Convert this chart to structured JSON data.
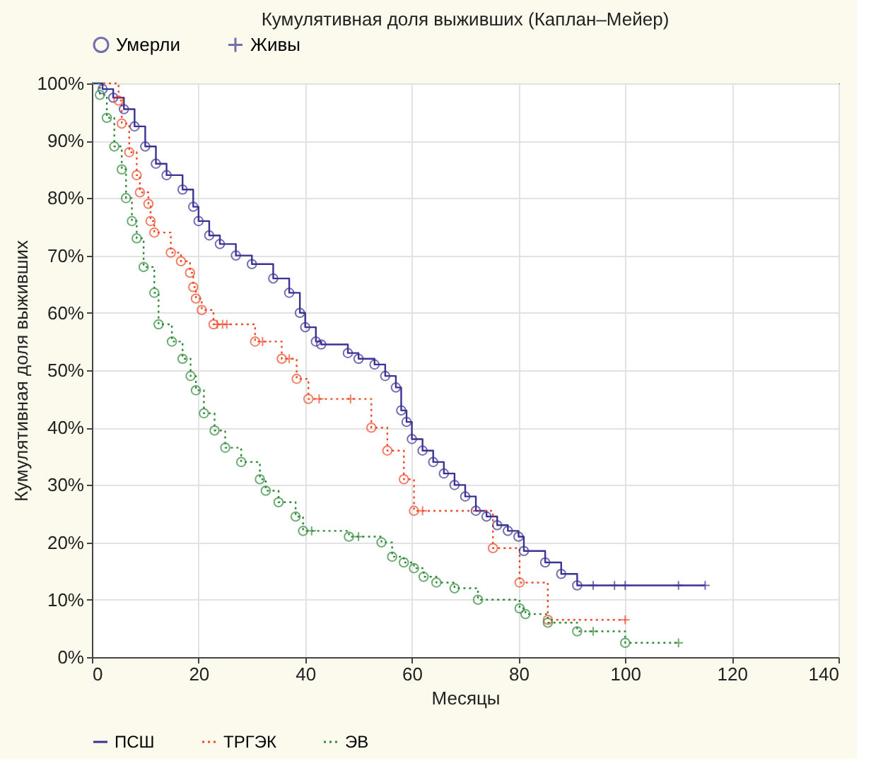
{
  "chart_data": {
    "type": "step",
    "title": "Кумулятивная доля выживших (Каплан–Мейер)",
    "xlabel": "Месяцы",
    "ylabel": "Кумулятивная доля выживших",
    "xlim": [
      0,
      140
    ],
    "xticks": [
      0,
      20,
      40,
      60,
      80,
      100,
      120,
      140
    ],
    "ylim": [
      0,
      100
    ],
    "yticks": [
      {
        "value": 0,
        "label": "0%"
      },
      {
        "value": 10,
        "label": "10%"
      },
      {
        "value": 20,
        "label": "20%"
      },
      {
        "value": 30,
        "label": "30%"
      },
      {
        "value": 40,
        "label": "40%"
      },
      {
        "value": 50,
        "label": "50%"
      },
      {
        "value": 60,
        "label": "60%"
      },
      {
        "value": 70,
        "label": "70%"
      },
      {
        "value": 80,
        "label": "80%"
      },
      {
        "value": 90,
        "label": "90%"
      },
      {
        "value": 100,
        "label": "100%"
      }
    ],
    "grid": true,
    "legend": "bottom",
    "series": [
      {
        "name": "ПСШ",
        "color": "#3a3393",
        "line_style": "solid",
        "x": [
          0,
          2,
          4,
          6,
          8,
          10,
          12,
          14,
          17,
          19,
          20,
          22,
          24,
          27,
          30,
          34,
          37,
          39,
          40,
          42,
          43,
          48,
          50,
          53,
          55,
          57,
          58,
          59,
          60,
          62,
          64,
          66,
          68,
          70,
          72,
          74,
          76,
          78,
          80,
          81,
          85,
          88,
          91,
          115
        ],
        "values": [
          100,
          99,
          97.5,
          95.5,
          92.5,
          89,
          86,
          84,
          81.5,
          78.5,
          76,
          73.5,
          72,
          70,
          68.5,
          66,
          63.5,
          60,
          57.5,
          55,
          54.5,
          53,
          52,
          51,
          49,
          47,
          43,
          41,
          38,
          36,
          34,
          32,
          30,
          28,
          25.5,
          24.5,
          23,
          22,
          21,
          18.5,
          16.5,
          14.5,
          12.5,
          12.5
        ]
      },
      {
        "name": "ТРГЭК",
        "color": "#f04a2a",
        "line_style": "dotted",
        "x": [
          0,
          5,
          5.6,
          7,
          8.4,
          9,
          10.6,
          11,
          11.7,
          14.8,
          16.7,
          18.4,
          19,
          19.5,
          20.6,
          22.8,
          30.6,
          35.6,
          38.4,
          40.6,
          52.4,
          55.4,
          58.5,
          60.4,
          75.2,
          80.2,
          85.5,
          100
        ],
        "values": [
          100,
          97,
          93,
          88,
          84,
          81,
          79,
          76,
          74,
          70.5,
          69,
          67,
          64.5,
          62.5,
          60.5,
          58,
          55,
          52,
          48.5,
          45,
          40,
          36,
          31,
          25.5,
          19,
          13,
          6.5,
          6.5
        ]
      },
      {
        "name": "ЭВ",
        "color": "#2e8b3a",
        "line_style": "dotted",
        "x": [
          0,
          1.5,
          2.8,
          4.2,
          5.6,
          6.4,
          7.5,
          8.4,
          9.7,
          11.7,
          12.5,
          15,
          17,
          18.5,
          19.5,
          21,
          23,
          25,
          28,
          31.5,
          32.6,
          35,
          38.2,
          39.6,
          48.2,
          54.3,
          56.3,
          58.5,
          60.4,
          62.2,
          64.6,
          68,
          72.4,
          80.2,
          81.3,
          85.5,
          91,
          100,
          110
        ],
        "values": [
          100,
          98,
          94,
          89,
          85,
          80,
          76,
          73,
          68,
          63.5,
          58,
          55,
          52,
          49,
          46.5,
          42.5,
          39.5,
          36.5,
          34,
          31,
          29,
          27,
          24.5,
          22,
          21,
          20,
          17.5,
          16.5,
          15.5,
          14,
          13,
          12,
          10,
          8.5,
          7.5,
          6,
          4.5,
          2.5,
          2.5
        ]
      },
      {
        "name": "Умерли",
        "type": "scatter",
        "marker": "circle",
        "color": "#3a3393",
        "x": [
          2,
          4,
          6,
          8,
          10,
          12,
          14,
          17,
          19,
          20,
          22,
          24,
          27,
          30,
          34,
          37,
          39,
          40,
          42,
          43,
          48,
          50,
          53,
          55,
          57,
          58,
          59,
          60,
          62,
          64,
          66,
          68,
          70,
          72,
          74,
          76,
          78,
          80,
          81,
          85,
          88,
          91,
          5,
          5.6,
          7,
          8.4,
          9,
          10.6,
          11,
          11.7,
          14.8,
          16.7,
          18.4,
          19,
          19.5,
          20.6,
          22.8,
          30.6,
          35.6,
          38.4,
          40.6,
          52.4,
          55.4,
          58.5,
          60.4,
          75.2,
          80.2,
          85.5,
          1.5,
          2.8,
          4.2,
          5.6,
          6.4,
          7.5,
          8.4,
          9.7,
          11.7,
          12.5,
          15,
          17,
          18.5,
          19.5,
          21,
          23,
          25,
          28,
          31.5,
          32.6,
          35,
          38.2,
          39.6,
          48.2,
          54.3,
          56.3,
          58.5,
          60.4,
          62.2,
          64.6,
          68,
          72.4,
          80.2,
          81.3,
          85.5,
          91,
          100
        ],
        "values": [
          99,
          97.5,
          95.5,
          92.5,
          89,
          86,
          84,
          81.5,
          78.5,
          76,
          73.5,
          72,
          70,
          68.5,
          66,
          63.5,
          60,
          57.5,
          55,
          54.5,
          53,
          52,
          51,
          49,
          47,
          43,
          41,
          38,
          36,
          34,
          32,
          30,
          28,
          25.5,
          24.5,
          23,
          22,
          21,
          18.5,
          16.5,
          14.5,
          12.5,
          97,
          93,
          88,
          84,
          81,
          79,
          76,
          74,
          70.5,
          69,
          67,
          64.5,
          62.5,
          60.5,
          58,
          55,
          52,
          48.5,
          45,
          40,
          36,
          31,
          25.5,
          19,
          13,
          6.5,
          98,
          94,
          89,
          85,
          80,
          76,
          73,
          68,
          63.5,
          58,
          55,
          52,
          49,
          46.5,
          42.5,
          39.5,
          36.5,
          34,
          31,
          29,
          27,
          24.5,
          22,
          21,
          20,
          17.5,
          16.5,
          15.5,
          14,
          13,
          12,
          10,
          8.5,
          7.5,
          6,
          4.5,
          2.5
        ],
        "colors": [
          "#3a3393",
          "#3a3393",
          "#3a3393",
          "#3a3393",
          "#3a3393",
          "#3a3393",
          "#3a3393",
          "#3a3393",
          "#3a3393",
          "#3a3393",
          "#3a3393",
          "#3a3393",
          "#3a3393",
          "#3a3393",
          "#3a3393",
          "#3a3393",
          "#3a3393",
          "#3a3393",
          "#3a3393",
          "#3a3393",
          "#3a3393",
          "#3a3393",
          "#3a3393",
          "#3a3393",
          "#3a3393",
          "#3a3393",
          "#3a3393",
          "#3a3393",
          "#3a3393",
          "#3a3393",
          "#3a3393",
          "#3a3393",
          "#3a3393",
          "#3a3393",
          "#3a3393",
          "#3a3393",
          "#3a3393",
          "#3a3393",
          "#3a3393",
          "#3a3393",
          "#3a3393",
          "#3a3393",
          "#f04a2a",
          "#f04a2a",
          "#f04a2a",
          "#f04a2a",
          "#f04a2a",
          "#f04a2a",
          "#f04a2a",
          "#f04a2a",
          "#f04a2a",
          "#f04a2a",
          "#f04a2a",
          "#f04a2a",
          "#f04a2a",
          "#f04a2a",
          "#f04a2a",
          "#f04a2a",
          "#f04a2a",
          "#f04a2a",
          "#f04a2a",
          "#f04a2a",
          "#f04a2a",
          "#f04a2a",
          "#f04a2a",
          "#f04a2a",
          "#f04a2a",
          "#f04a2a",
          "#2e8b3a",
          "#2e8b3a",
          "#2e8b3a",
          "#2e8b3a",
          "#2e8b3a",
          "#2e8b3a",
          "#2e8b3a",
          "#2e8b3a",
          "#2e8b3a",
          "#2e8b3a",
          "#2e8b3a",
          "#2e8b3a",
          "#2e8b3a",
          "#2e8b3a",
          "#2e8b3a",
          "#2e8b3a",
          "#2e8b3a",
          "#2e8b3a",
          "#2e8b3a",
          "#2e8b3a",
          "#2e8b3a",
          "#2e8b3a",
          "#2e8b3a",
          "#2e8b3a",
          "#2e8b3a",
          "#2e8b3a",
          "#2e8b3a",
          "#2e8b3a",
          "#2e8b3a",
          "#2e8b3a",
          "#2e8b3a",
          "#2e8b3a",
          "#2e8b3a",
          "#2e8b3a",
          "#2e8b3a",
          "#2e8b3a",
          "#2e8b3a"
        ]
      },
      {
        "name": "Живы",
        "type": "scatter",
        "marker": "cross",
        "color": "#3a3393",
        "x": [
          94,
          98,
          100,
          110,
          115,
          23.5,
          24.5,
          25.3,
          32,
          37,
          42.6,
          48.5,
          62,
          100,
          41.2,
          50,
          94,
          110
        ],
        "values": [
          12.5,
          12.5,
          12.5,
          12.5,
          12.5,
          58,
          58,
          58,
          55,
          52,
          45,
          45,
          25.5,
          6.5,
          22,
          21,
          4.5,
          2.5
        ],
        "colors": [
          "#3a3393",
          "#3a3393",
          "#3a3393",
          "#3a3393",
          "#3a3393",
          "#f04a2a",
          "#f04a2a",
          "#f04a2a",
          "#f04a2a",
          "#f04a2a",
          "#f04a2a",
          "#f04a2a",
          "#f04a2a",
          "#f04a2a",
          "#2e8b3a",
          "#2e8b3a",
          "#2e8b3a",
          "#2e8b3a"
        ]
      }
    ]
  }
}
